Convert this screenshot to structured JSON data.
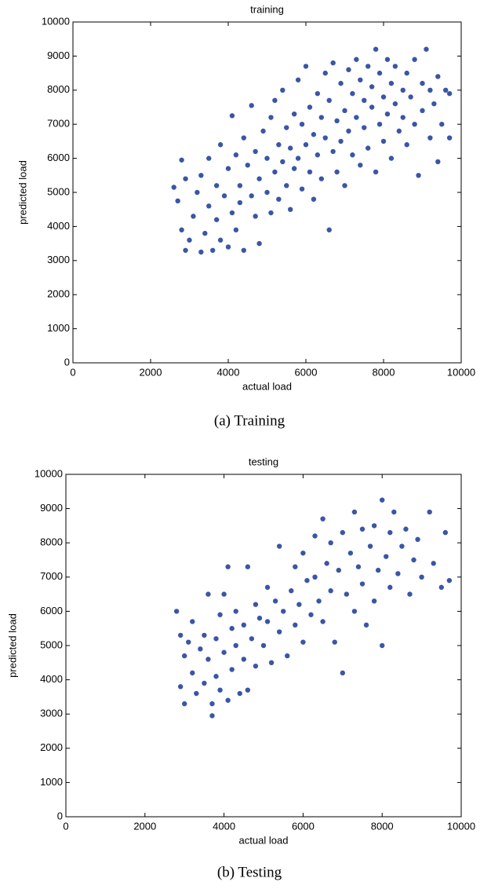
{
  "chart_data": [
    {
      "type": "scatter",
      "title": "training",
      "xlabel": "actual load",
      "ylabel": "predicted load",
      "caption": "(a) Training",
      "color": "#3a56a5",
      "xlim": [
        0,
        10000
      ],
      "xticks": [
        0,
        2000,
        4000,
        6000,
        8000,
        10000
      ],
      "ylim": [
        0,
        10000
      ],
      "yticks": [
        0,
        1000,
        2000,
        3000,
        4000,
        5000,
        6000,
        7000,
        8000,
        9000,
        10000
      ],
      "x": [
        2600,
        2700,
        2800,
        2900,
        2800,
        2900,
        3000,
        3100,
        3200,
        3300,
        3300,
        3400,
        3500,
        3500,
        3600,
        3700,
        3700,
        3800,
        3800,
        3900,
        4000,
        4000,
        4100,
        4100,
        4200,
        4200,
        4300,
        4300,
        4400,
        4400,
        4500,
        4600,
        4600,
        4700,
        4700,
        4800,
        4800,
        4900,
        5000,
        5000,
        5100,
        5100,
        5200,
        5200,
        5300,
        5300,
        5400,
        5400,
        5500,
        5500,
        5600,
        5600,
        5700,
        5700,
        5800,
        5800,
        5900,
        5900,
        6000,
        6000,
        6100,
        6100,
        6200,
        6200,
        6300,
        6300,
        6400,
        6400,
        6500,
        6500,
        6600,
        6600,
        6700,
        6700,
        6800,
        6800,
        6900,
        6900,
        7000,
        7000,
        7100,
        7100,
        7200,
        7200,
        7300,
        7300,
        7400,
        7400,
        7500,
        7500,
        7600,
        7600,
        7700,
        7700,
        7800,
        7800,
        7900,
        7900,
        8000,
        8000,
        8100,
        8100,
        8200,
        8200,
        8300,
        8300,
        8400,
        8500,
        8500,
        8600,
        8600,
        8700,
        8800,
        8800,
        8900,
        9000,
        9000,
        9100,
        9200,
        9200,
        9300,
        9400,
        9400,
        9500,
        9600,
        9700,
        9700
      ],
      "values": [
        5150,
        4750,
        5950,
        5400,
        3900,
        3300,
        3600,
        4300,
        5000,
        3250,
        5500,
        3800,
        4600,
        6000,
        3300,
        4200,
        5200,
        3600,
        6400,
        4900,
        3400,
        5700,
        4400,
        7250,
        6100,
        3900,
        5200,
        4700,
        6600,
        3300,
        5800,
        4900,
        7550,
        4300,
        6200,
        5400,
        3500,
        6800,
        5000,
        6000,
        4400,
        7200,
        5600,
        7700,
        4800,
        6400,
        5900,
        8000,
        5200,
        6900,
        6300,
        4500,
        7300,
        5700,
        8300,
        6000,
        5100,
        7000,
        6400,
        8700,
        5600,
        7500,
        6700,
        4800,
        7900,
        6100,
        5400,
        7200,
        8500,
        6600,
        3900,
        7700,
        6200,
        8800,
        5600,
        7100,
        8200,
        6500,
        7400,
        5200,
        8600,
        6800,
        7900,
        6100,
        8900,
        7200,
        5800,
        8300,
        6900,
        7700,
        8700,
        6300,
        7500,
        8100,
        9200,
        5600,
        7000,
        8500,
        7800,
        6500,
        8900,
        7300,
        8200,
        6000,
        7600,
        8700,
        6800,
        8000,
        7200,
        8500,
        6400,
        7800,
        8900,
        7000,
        5500,
        8200,
        7400,
        9200,
        6600,
        8000,
        7600,
        5900,
        8400,
        7000,
        8000,
        7900,
        6600
      ]
    },
    {
      "type": "scatter",
      "title": "testing",
      "xlabel": "actual load",
      "ylabel": "predicted load",
      "caption": "(b) Testing",
      "color": "#3a56a5",
      "xlim": [
        0,
        10000
      ],
      "xticks": [
        0,
        2000,
        4000,
        6000,
        8000,
        10000
      ],
      "ylim": [
        0,
        10000
      ],
      "yticks": [
        0,
        1000,
        2000,
        3000,
        4000,
        5000,
        6000,
        7000,
        8000,
        9000,
        10000
      ],
      "x": [
        2800,
        2900,
        2900,
        3000,
        3000,
        3100,
        3200,
        3200,
        3300,
        3400,
        3500,
        3500,
        3600,
        3600,
        3700,
        3700,
        3800,
        3800,
        3900,
        3900,
        4000,
        4000,
        4100,
        4100,
        4200,
        4200,
        4300,
        4300,
        4400,
        4500,
        4500,
        4600,
        4600,
        4700,
        4800,
        4800,
        4900,
        5000,
        5100,
        5100,
        5200,
        5300,
        5400,
        5400,
        5500,
        5600,
        5700,
        5800,
        5800,
        5900,
        6000,
        6000,
        6100,
        6200,
        6300,
        6300,
        6400,
        6500,
        6500,
        6600,
        6700,
        6700,
        6800,
        6900,
        7000,
        7000,
        7100,
        7200,
        7300,
        7300,
        7400,
        7500,
        7500,
        7600,
        7700,
        7800,
        7800,
        7900,
        8000,
        8000,
        8100,
        8200,
        8200,
        8300,
        8400,
        8500,
        8600,
        8700,
        8800,
        8900,
        9000,
        9200,
        9300,
        9500,
        9600,
        9700
      ],
      "values": [
        6000,
        5300,
        3800,
        4700,
        3300,
        5100,
        5700,
        4200,
        3600,
        4900,
        5300,
        3900,
        4600,
        6500,
        3300,
        2950,
        5200,
        4100,
        5900,
        3700,
        4800,
        6500,
        3400,
        7300,
        5500,
        4300,
        5000,
        6000,
        3600,
        4600,
        5600,
        7300,
        3700,
        5200,
        4400,
        6200,
        5800,
        5000,
        5700,
        6700,
        4500,
        6300,
        7900,
        5400,
        6000,
        4700,
        6600,
        5600,
        7300,
        6200,
        7700,
        5100,
        6900,
        5900,
        8200,
        7000,
        6300,
        8700,
        5700,
        7400,
        6600,
        8000,
        5100,
        7200,
        4200,
        8300,
        6500,
        7700,
        8900,
        6000,
        7300,
        8400,
        6800,
        5600,
        7900,
        8500,
        6300,
        7200,
        5000,
        9250,
        7600,
        8300,
        6700,
        8900,
        7100,
        7900,
        8400,
        6500,
        7500,
        8100,
        7000,
        8900,
        7400,
        6700,
        8300,
        6900
      ]
    }
  ]
}
